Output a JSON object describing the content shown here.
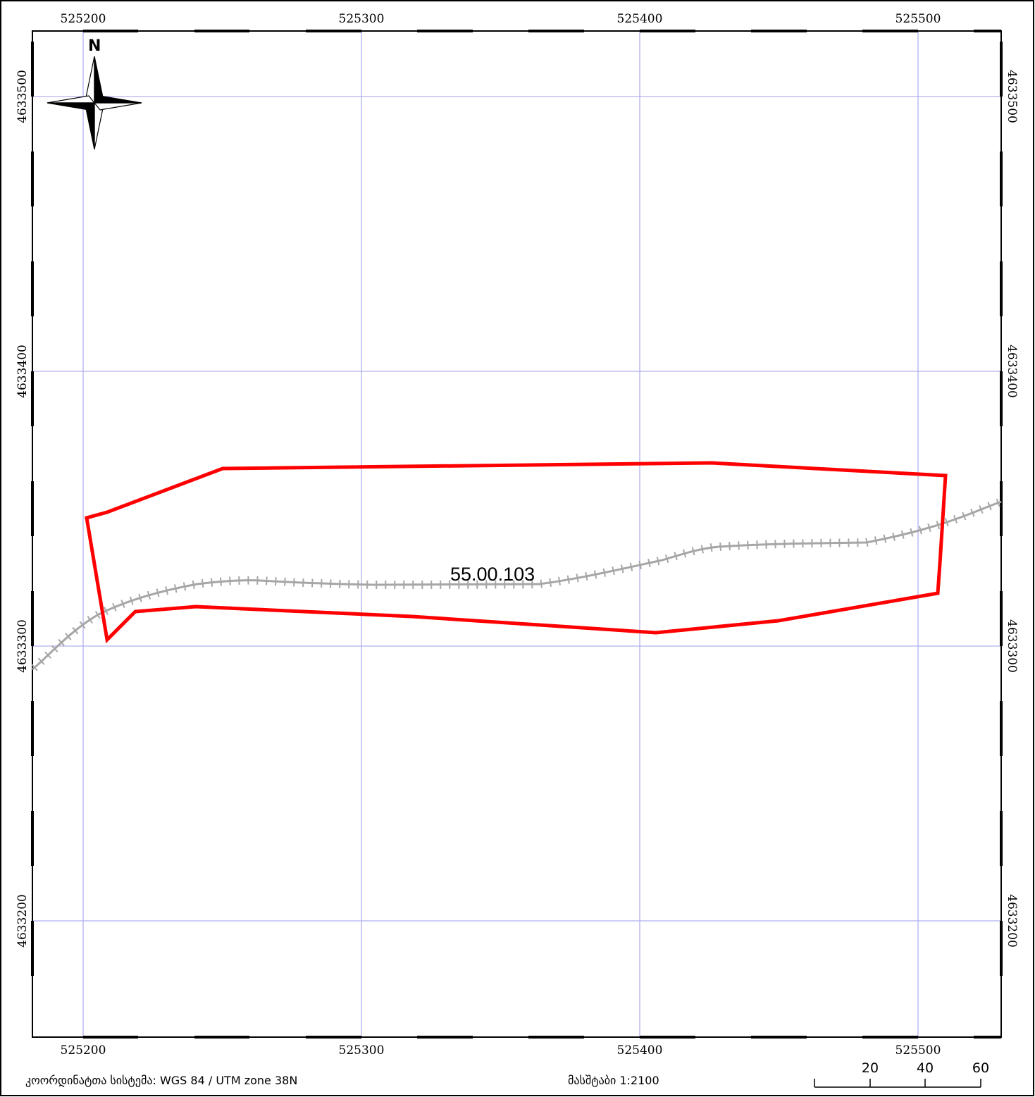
{
  "map": {
    "x_ticks": [
      "525200",
      "525300",
      "525400",
      "525500"
    ],
    "y_ticks": [
      "4633500",
      "4633400",
      "4633300",
      "4633200"
    ],
    "parcel_id": "55.00.103",
    "north_label": "N"
  },
  "footer": {
    "crs_text": "კოორდინატთა სისტემა: WGS 84 / UTM zone 38N",
    "scale_text": "მასშტაბი 1:2100"
  },
  "scale_bar": {
    "labels": [
      "20",
      "40",
      "60"
    ]
  },
  "colors": {
    "grid": "#b0b0f0",
    "parcel": "#ff0000",
    "railway": "#a6a6a6",
    "frame": "#000000"
  }
}
